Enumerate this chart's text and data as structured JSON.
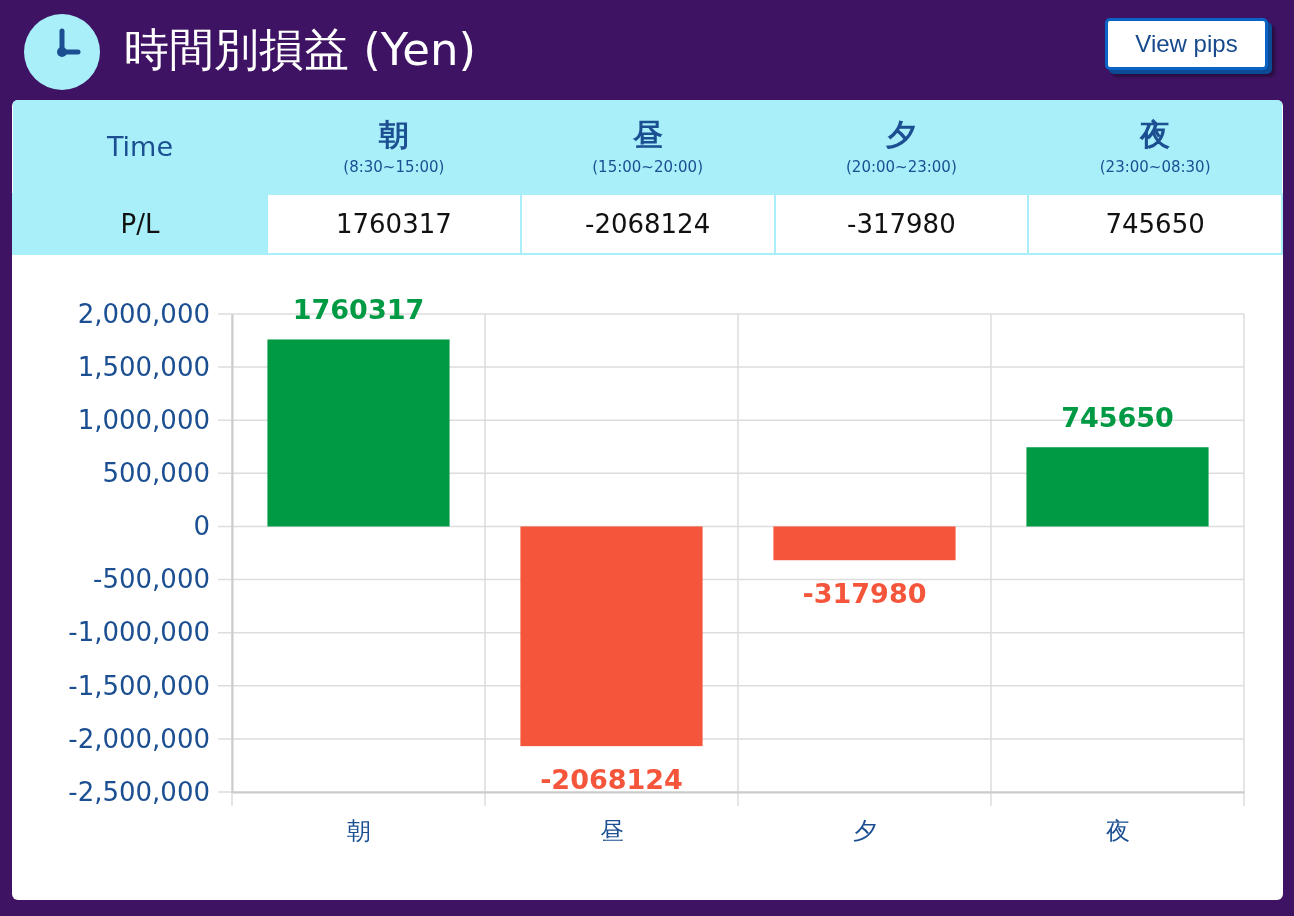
{
  "chart_data": {
    "type": "bar",
    "title": "時間別損益 (Yen)",
    "categories": [
      "朝",
      "昼",
      "夕",
      "夜"
    ],
    "values": [
      1760317,
      -2068124,
      -317980,
      745650
    ],
    "colors": [
      "#009944",
      "#f5553a",
      "#f5553a",
      "#009944"
    ],
    "ylim": [
      -2500000,
      2000000
    ],
    "yticks": [
      {
        "value": 2000000,
        "label": "2,000,000"
      },
      {
        "value": 1500000,
        "label": "1,500,000"
      },
      {
        "value": 1000000,
        "label": "1,000,000"
      },
      {
        "value": 500000,
        "label": "500,000"
      },
      0,
      {
        "value": -500000,
        "label": "-500,000"
      },
      {
        "value": -1000000,
        "label": "-1,000,000"
      },
      {
        "value": -1500000,
        "label": "-1,500,000"
      },
      {
        "value": -2000000,
        "label": "-2,000,000"
      },
      {
        "value": -2500000,
        "label": "-2,500,000"
      }
    ],
    "grid": true,
    "data_labels": true,
    "annotations": [
      "Time",
      "P/L",
      "(8:30~15:00)",
      "(15:00~20:00)",
      "(20:00~23:00)",
      "(23:00~08:30)",
      "View pips",
      "1760317",
      "-2068124",
      "-317980",
      "745650"
    ]
  }
}
